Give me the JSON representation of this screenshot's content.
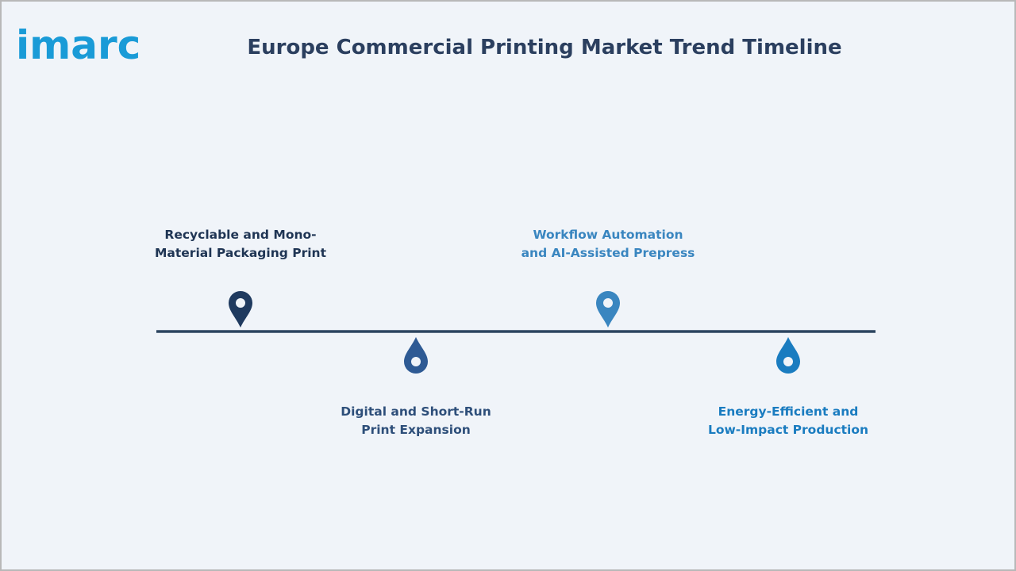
{
  "header": {
    "logo": "imarc",
    "title": "Europe Commercial Printing Market Trend Timeline"
  },
  "timeline": {
    "items": [
      {
        "lines": [
          "Recyclable and Mono-",
          "Material Packaging Print"
        ]
      },
      {
        "lines": [
          "Digital and Short-Run",
          "Print Expansion"
        ]
      },
      {
        "lines": [
          "Workflow Automation",
          "and AI-Assisted Prepress"
        ]
      },
      {
        "lines": [
          "Energy-Efficient and",
          "Low-Impact Production"
        ]
      }
    ]
  }
}
